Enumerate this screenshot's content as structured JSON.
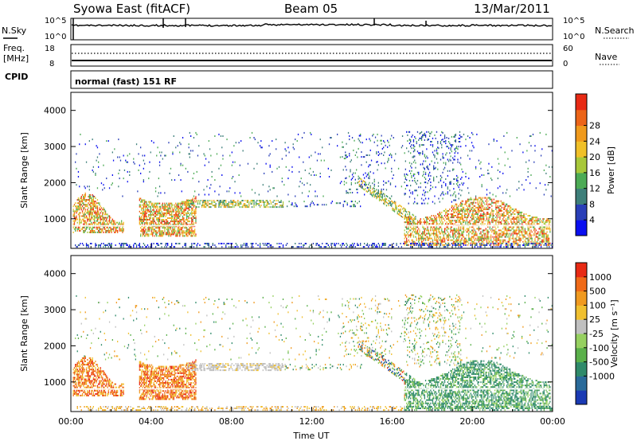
{
  "header": {
    "station": "Syowa East (fitACF)",
    "beam": "Beam 05",
    "date": "13/Mar/2011"
  },
  "strips": {
    "nsky": {
      "label": "N.Sky",
      "left_ticks": [
        "10^5",
        "10^0"
      ],
      "right_label": "N.Search",
      "right_ticks": [
        "10^5",
        "10^0"
      ]
    },
    "freq": {
      "label": "Freq.",
      "unit": "[MHz]",
      "left_ticks": [
        "18",
        "8"
      ],
      "right_label": "Nave",
      "right_ticks": [
        "60",
        "0"
      ]
    },
    "cpid": {
      "label": "CPID",
      "mode": "normal (fast) 151 RF"
    }
  },
  "chart_data": [
    {
      "type": "heatmap",
      "name": "power-panel",
      "ylabel": "Slant Range [km]",
      "ylim": [
        180,
        4500
      ],
      "y_ticks": [
        "1000",
        "2000",
        "3000",
        "4000"
      ],
      "x_ticks": [
        "00:00",
        "04:00",
        "08:00",
        "12:00",
        "16:00",
        "20:00",
        "00:00"
      ],
      "colorbar": {
        "label": "Power [dB]",
        "ticks": [
          "4",
          "8",
          "12",
          "16",
          "20",
          "24",
          "28"
        ],
        "colors": [
          "#0a0ff0",
          "#2a3fb8",
          "#3e7f7a",
          "#4cab55",
          "#a8c83a",
          "#f0c028",
          "#f09a1c",
          "#ec6418",
          "#e82a14"
        ]
      }
    },
    {
      "type": "heatmap",
      "name": "velocity-panel",
      "ylabel": "Slant Range [km]",
      "ylim": [
        180,
        4500
      ],
      "y_ticks": [
        "1000",
        "2000",
        "3000",
        "4000"
      ],
      "x_ticks": [
        "00:00",
        "04:00",
        "08:00",
        "12:00",
        "16:00",
        "20:00",
        "00:00"
      ],
      "xlabel": "Time UT",
      "colorbar": {
        "label": "Velocity [m s⁻¹]",
        "ticks": [
          "1000",
          "500",
          "100",
          "25",
          "-25",
          "-100",
          "-500",
          "-1000"
        ],
        "colors": [
          "#1a3ab4",
          "#2a6a9a",
          "#2f8a6a",
          "#5ab04a",
          "#96d060",
          "#c0c0c0",
          "#f0c030",
          "#f09a20",
          "#f06a18",
          "#e82a14"
        ]
      }
    }
  ]
}
